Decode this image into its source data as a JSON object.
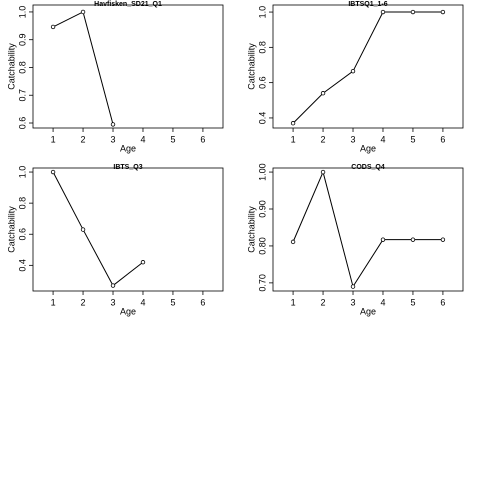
{
  "chart_data": [
    {
      "type": "line",
      "title": "Havfisken_SD21_Q1",
      "x_label": "Age",
      "y_label": "Catchability",
      "x": [
        1,
        2,
        3
      ],
      "values": [
        0.946,
        1.0,
        0.595
      ],
      "color": "#000000",
      "xlim": [
        0.33,
        6.67
      ],
      "xticks": [
        1,
        2,
        3,
        4,
        5,
        6
      ],
      "ylim": [
        0.582,
        1.025
      ],
      "yticks": [
        0.6,
        0.7,
        0.8,
        0.9,
        {
          "value": 1.0,
          "label": "1.0"
        }
      ]
    },
    {
      "type": "line",
      "title": "IBTSQ1_1-6",
      "x_label": "Age",
      "y_label": "Catchability",
      "x": [
        1,
        2,
        3,
        4,
        5,
        6
      ],
      "values": [
        0.37,
        0.54,
        0.665,
        1.0,
        1.0,
        1.0
      ],
      "color": "#000000",
      "xlim": [
        0.33,
        6.67
      ],
      "xticks": [
        1,
        2,
        3,
        4,
        5,
        6
      ],
      "ylim": [
        0.343,
        1.04
      ],
      "yticks": [
        0.4,
        0.6,
        0.8,
        {
          "value": 1.0,
          "label": "1.0"
        }
      ]
    },
    {
      "type": "line",
      "title": "IBTS_Q3",
      "x_label": "Age",
      "y_label": "Catchability",
      "x": [
        1,
        2,
        3,
        4
      ],
      "values": [
        1.0,
        0.63,
        0.27,
        0.42
      ],
      "color": "#000000",
      "xlim": [
        0.33,
        6.67
      ],
      "xticks": [
        1,
        2,
        3,
        4,
        5,
        6
      ],
      "ylim": [
        0.235,
        1.026
      ],
      "yticks": [
        0.4,
        0.6,
        0.8,
        {
          "value": 1.0,
          "label": "1.0"
        }
      ]
    },
    {
      "type": "line",
      "title": "CODS_Q4",
      "x_label": "Age",
      "y_label": "Catchability",
      "x": [
        1,
        2,
        3,
        4,
        5,
        6
      ],
      "values": [
        0.811,
        1.0,
        0.69,
        0.817,
        0.817,
        0.817
      ],
      "color": "#000000",
      "xlim": [
        0.33,
        6.67
      ],
      "xticks": [
        1,
        2,
        3,
        4,
        5,
        6
      ],
      "ylim": [
        0.678,
        1.011
      ],
      "yticks": [
        {
          "value": 0.7,
          "label": "0.70"
        },
        {
          "value": 0.8,
          "label": "0.80"
        },
        {
          "value": 0.9,
          "label": "0.90"
        },
        {
          "value": 1.0,
          "label": "1.00"
        }
      ]
    }
  ]
}
